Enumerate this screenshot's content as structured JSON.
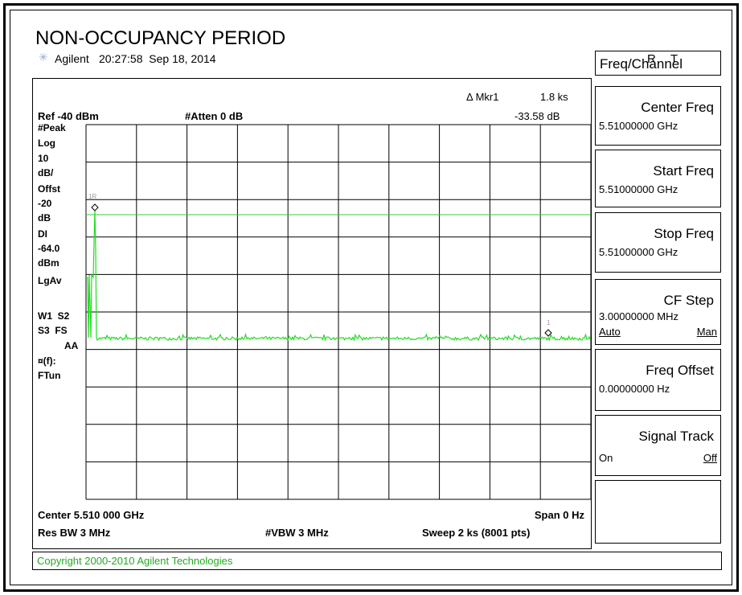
{
  "title": "NON-OCCUPANCY PERIOD",
  "header": {
    "brand": "Agilent",
    "timestamp": "20:27:58  Sep 18, 2014",
    "status": [
      "R",
      "T"
    ]
  },
  "display": {
    "marker": {
      "label": "Δ Mkr1",
      "x": "1.8 ks",
      "y": "-33.58 dB"
    },
    "ref": "Ref -40 dBm",
    "atten": "#Atten 0 dB",
    "left_labels": [
      "#Peak",
      "Log",
      "10",
      "dB/",
      "Offst",
      "-20",
      "dB",
      "DI",
      "-64.0",
      "dBm",
      "LgAv",
      "W1  S2",
      "S3  FS",
      "AA",
      "¤(f):",
      "FTun"
    ],
    "marker_tags": [
      "1R",
      "1"
    ],
    "bottom": {
      "center": "Center 5.510 000 GHz",
      "span": "Span 0 Hz",
      "rbw": "Res BW 3 MHz",
      "vbw": "#VBW 3 MHz",
      "sweep": "Sweep 2 ks (8001 pts)"
    }
  },
  "softkeys": {
    "menu": "Freq/Channel",
    "keys": [
      {
        "label": "Center Freq",
        "value": "5.51000000 GHz"
      },
      {
        "label": "Start Freq",
        "value": "5.51000000 GHz"
      },
      {
        "label": "Stop Freq",
        "value": "5.51000000 GHz"
      },
      {
        "label": "CF Step",
        "value": "3.00000000 MHz",
        "options": [
          "Auto",
          "Man"
        ]
      },
      {
        "label": "Freq Offset",
        "value": "0.00000000  Hz"
      },
      {
        "label": "Signal Track",
        "options": [
          "On",
          "Off"
        ]
      }
    ]
  },
  "copyright": "Copyright 2000-2010 Agilent Technologies"
}
